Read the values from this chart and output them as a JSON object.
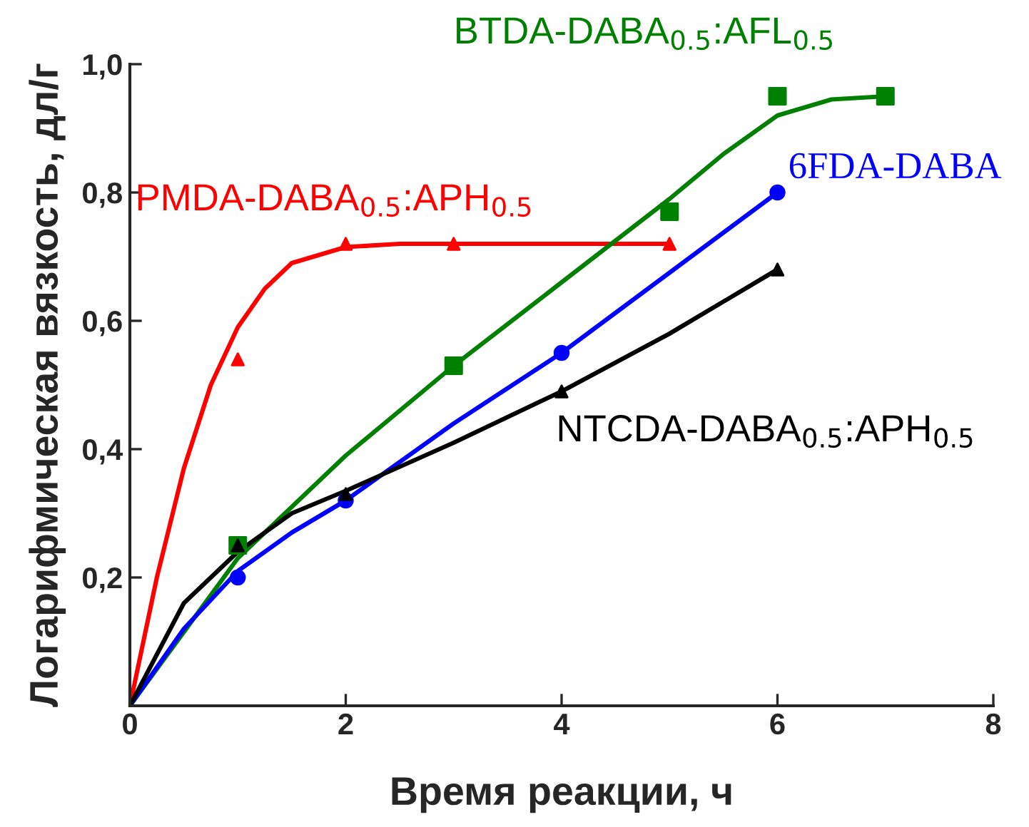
{
  "chart_data": {
    "type": "scatter",
    "xlabel": "Время реакции, ч",
    "ylabel": "Логарифмическая вязкость, дл/г",
    "xlim": [
      0,
      8
    ],
    "ylim": [
      0,
      1.0
    ],
    "xticks": [
      0,
      2,
      4,
      6,
      8
    ],
    "yticks": [
      {
        "value": 0.2,
        "label": "0,2"
      },
      {
        "value": 0.4,
        "label": "0,4"
      },
      {
        "value": 0.6,
        "label": "0,6"
      },
      {
        "value": 0.8,
        "label": "0,8"
      },
      {
        "value": 1.0,
        "label": "1,0"
      }
    ],
    "grid": false,
    "legend": false,
    "series": [
      {
        "type": "line",
        "color": "#ff0000",
        "x": [
          0,
          0.25,
          0.5,
          0.75,
          1,
          1.25,
          1.5,
          2,
          2.5,
          3,
          5
        ],
        "values": [
          0,
          0.2,
          0.37,
          0.5,
          0.59,
          0.65,
          0.69,
          0.715,
          0.72,
          0.72,
          0.72
        ]
      },
      {
        "type": "line",
        "color": "#008000",
        "x": [
          0,
          1,
          2,
          3,
          4,
          5,
          5.5,
          6,
          6.5,
          7
        ],
        "values": [
          0,
          0.23,
          0.39,
          0.53,
          0.66,
          0.79,
          0.86,
          0.92,
          0.945,
          0.95
        ]
      },
      {
        "type": "line",
        "color": "#0000ff",
        "x": [
          0,
          0.5,
          1,
          1.5,
          2,
          3,
          4,
          5,
          6
        ],
        "values": [
          0,
          0.12,
          0.21,
          0.27,
          0.32,
          0.44,
          0.55,
          0.675,
          0.8
        ]
      },
      {
        "type": "line",
        "color": "#000000",
        "x": [
          0,
          0.5,
          1,
          1.5,
          2,
          3,
          4,
          5,
          6
        ],
        "values": [
          0,
          0.16,
          0.24,
          0.3,
          0.335,
          0.41,
          0.49,
          0.58,
          0.68
        ]
      },
      {
        "name": "PMDA-DABA$_{0.5}$:APH$_{0.5}$",
        "color": "#ff0000",
        "marker": "triangle",
        "x": [
          1,
          2,
          3,
          5
        ],
        "values": [
          0.54,
          0.72,
          0.72,
          0.72
        ]
      },
      {
        "name": "BTDA-DABA$_{0.5}$:AFL$_{0.5}$",
        "color": "#008000",
        "marker": "square",
        "x": [
          1,
          3,
          5,
          6,
          7
        ],
        "values": [
          0.25,
          0.53,
          0.77,
          0.95,
          0.95
        ]
      },
      {
        "name": "6FDA-DABA",
        "color": "#0000ff",
        "marker": "circle",
        "x": [
          1,
          2,
          4,
          6
        ],
        "values": [
          0.2,
          0.32,
          0.55,
          0.8
        ]
      },
      {
        "name": "NTCDA-DABA$_{0.5}$:APH$_{0.5}$",
        "color": "#000000",
        "marker": "triangle",
        "x": [
          1,
          2,
          4,
          6
        ],
        "values": [
          0.25,
          0.33,
          0.49,
          0.68
        ]
      }
    ]
  }
}
